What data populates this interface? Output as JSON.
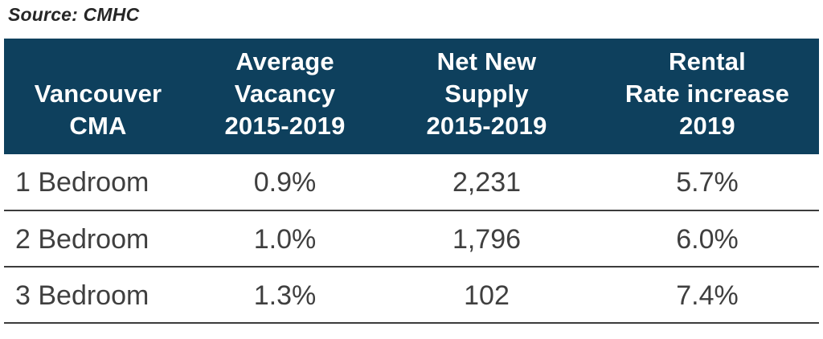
{
  "source": {
    "label": "Source: CMHC"
  },
  "colors": {
    "header_bg": "#0e405d",
    "header_text": "#ffffff",
    "body_text": "#3f3f3f",
    "divider": "#3c3c3c",
    "source_text": "#262626"
  },
  "table": {
    "columns": [
      {
        "label": "Vancouver\nCMA"
      },
      {
        "label": "Average\nVacancy\n2015-2019"
      },
      {
        "label": "Net New\nSupply\n2015-2019"
      },
      {
        "label": "Rental\nRate increase\n2019"
      }
    ],
    "rows": [
      {
        "cells": [
          "1 Bedroom",
          "0.9%",
          "2,231",
          "5.7%"
        ]
      },
      {
        "cells": [
          "2 Bedroom",
          "1.0%",
          "1,796",
          "6.0%"
        ]
      },
      {
        "cells": [
          "3 Bedroom",
          "1.3%",
          "102",
          "7.4%"
        ]
      }
    ]
  },
  "chart_data": {
    "type": "table",
    "source": "Source: CMHC",
    "columns": [
      "Vancouver CMA",
      "Average Vacancy 2015-2019",
      "Net New Supply 2015-2019",
      "Rental Rate increase 2019"
    ],
    "rows": [
      [
        "1 Bedroom",
        "0.9%",
        "2,231",
        "5.7%"
      ],
      [
        "2 Bedroom",
        "1.0%",
        "1,796",
        "6.0%"
      ],
      [
        "3 Bedroom",
        "1.3%",
        "102",
        "7.4%"
      ]
    ],
    "numeric": {
      "average_vacancy_pct_2015_2019": [
        0.9,
        1.0,
        1.3
      ],
      "net_new_supply_2015_2019": [
        2231,
        1796,
        102
      ],
      "rental_rate_increase_pct_2019": [
        5.7,
        6.0,
        7.4
      ]
    }
  }
}
